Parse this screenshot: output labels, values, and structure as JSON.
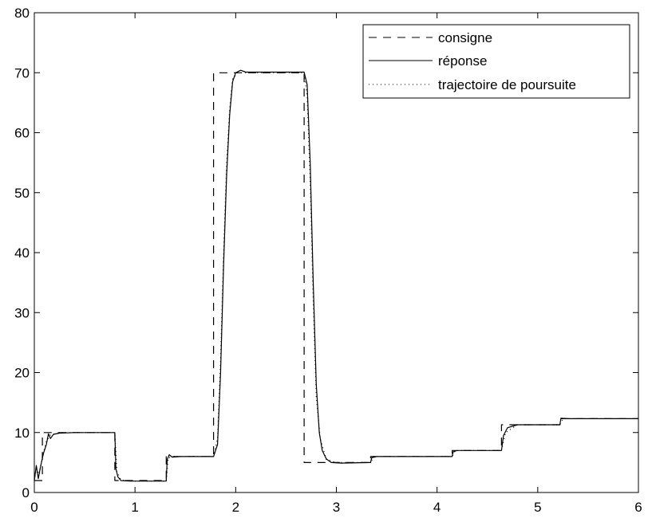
{
  "chart_data": {
    "type": "line",
    "title": "",
    "xlabel": "",
    "ylabel": "",
    "xlim": [
      0,
      6
    ],
    "ylim": [
      0,
      80
    ],
    "xticks": [
      "0",
      "1",
      "2",
      "3",
      "4",
      "5",
      "6"
    ],
    "yticks": [
      "0",
      "10",
      "20",
      "30",
      "40",
      "50",
      "60",
      "70",
      "80"
    ],
    "grid": false,
    "legend_position": "top-right",
    "series": [
      {
        "name": "consigne",
        "style": "dashed",
        "color": "#000000",
        "points": [
          [
            0.0,
            2
          ],
          [
            0.08,
            2
          ],
          [
            0.08,
            10
          ],
          [
            0.8,
            10
          ],
          [
            0.8,
            2
          ],
          [
            1.31,
            2
          ],
          [
            1.31,
            6
          ],
          [
            1.78,
            6
          ],
          [
            1.78,
            70
          ],
          [
            2.68,
            70
          ],
          [
            2.68,
            5
          ],
          [
            3.34,
            5
          ],
          [
            3.34,
            6
          ],
          [
            4.15,
            6
          ],
          [
            4.15,
            7
          ],
          [
            4.64,
            7
          ],
          [
            4.64,
            11.3
          ],
          [
            5.22,
            11.3
          ],
          [
            5.22,
            12.3
          ],
          [
            6.0,
            12.3
          ]
        ]
      },
      {
        "name": "réponse",
        "style": "solid",
        "color": "#000000",
        "points": [
          [
            0.0,
            2
          ],
          [
            0.02,
            4.5
          ],
          [
            0.04,
            2.3
          ],
          [
            0.06,
            4.2
          ],
          [
            0.09,
            6.5
          ],
          [
            0.12,
            8
          ],
          [
            0.14,
            9.8
          ],
          [
            0.16,
            9.0
          ],
          [
            0.19,
            9.7
          ],
          [
            0.25,
            9.9
          ],
          [
            0.4,
            10
          ],
          [
            0.8,
            10
          ],
          [
            0.81,
            4
          ],
          [
            0.83,
            2.6
          ],
          [
            0.86,
            2.0
          ],
          [
            0.95,
            1.9
          ],
          [
            1.31,
            1.9
          ],
          [
            1.32,
            5.5
          ],
          [
            1.34,
            6.3
          ],
          [
            1.37,
            5.9
          ],
          [
            1.45,
            6
          ],
          [
            1.78,
            6
          ],
          [
            1.82,
            8
          ],
          [
            1.85,
            20
          ],
          [
            1.88,
            38
          ],
          [
            1.91,
            53
          ],
          [
            1.94,
            63
          ],
          [
            1.97,
            68.5
          ],
          [
            2.0,
            70
          ],
          [
            2.05,
            70.4
          ],
          [
            2.1,
            70.1
          ],
          [
            2.68,
            70.1
          ],
          [
            2.71,
            68
          ],
          [
            2.74,
            55
          ],
          [
            2.77,
            35
          ],
          [
            2.8,
            18
          ],
          [
            2.83,
            10
          ],
          [
            2.86,
            7
          ],
          [
            2.9,
            5.6
          ],
          [
            2.95,
            5
          ],
          [
            3.05,
            4.9
          ],
          [
            3.34,
            5
          ],
          [
            3.35,
            5.8
          ],
          [
            3.4,
            6
          ],
          [
            4.15,
            6
          ],
          [
            4.16,
            6.8
          ],
          [
            4.2,
            7
          ],
          [
            4.64,
            7
          ],
          [
            4.66,
            9.5
          ],
          [
            4.7,
            10.8
          ],
          [
            4.8,
            11.3
          ],
          [
            5.22,
            11.3
          ],
          [
            5.23,
            12.4
          ],
          [
            5.3,
            12.3
          ],
          [
            6.0,
            12.3
          ]
        ]
      },
      {
        "name": "trajectoire de poursuite",
        "style": "dotted",
        "color": "#000000",
        "points": [
          [
            0.0,
            2
          ],
          [
            0.02,
            4.0
          ],
          [
            0.05,
            3.0
          ],
          [
            0.08,
            6
          ],
          [
            0.12,
            8.5
          ],
          [
            0.16,
            9.6
          ],
          [
            0.25,
            10
          ],
          [
            0.8,
            10
          ],
          [
            0.82,
            3.5
          ],
          [
            0.86,
            2.1
          ],
          [
            0.95,
            1.9
          ],
          [
            1.31,
            1.9
          ],
          [
            1.33,
            5.8
          ],
          [
            1.4,
            6
          ],
          [
            1.78,
            6
          ],
          [
            1.82,
            9
          ],
          [
            1.85,
            22
          ],
          [
            1.88,
            40
          ],
          [
            1.91,
            55
          ],
          [
            1.94,
            64
          ],
          [
            1.97,
            69
          ],
          [
            2.02,
            70
          ],
          [
            2.68,
            70
          ],
          [
            2.71,
            66
          ],
          [
            2.74,
            52
          ],
          [
            2.77,
            32
          ],
          [
            2.8,
            16
          ],
          [
            2.84,
            9
          ],
          [
            2.9,
            5.5
          ],
          [
            3.0,
            5
          ],
          [
            3.34,
            5
          ],
          [
            3.37,
            6
          ],
          [
            4.15,
            6
          ],
          [
            4.18,
            7
          ],
          [
            4.64,
            7
          ],
          [
            4.68,
            10
          ],
          [
            4.8,
            11.3
          ],
          [
            5.22,
            11.3
          ],
          [
            5.25,
            12.3
          ],
          [
            6.0,
            12.3
          ]
        ]
      }
    ]
  }
}
